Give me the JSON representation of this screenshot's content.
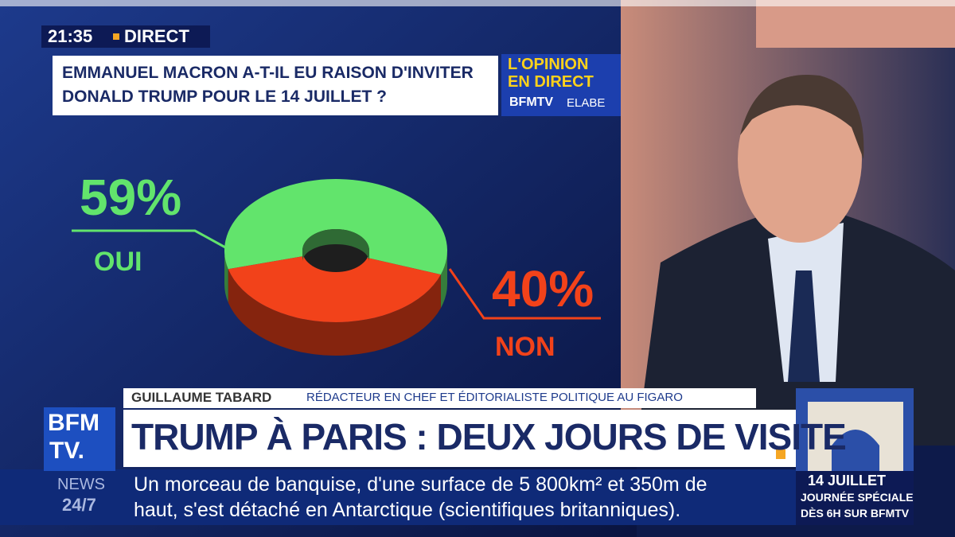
{
  "header": {
    "time": "21:35",
    "live": "DIRECT"
  },
  "chart_data": {
    "type": "pie",
    "title": "EMMANUEL MACRON A-T-IL EU RAISON D'INVITER DONALD TRUMP POUR LE 14 JUILLET ?",
    "categories": [
      "OUI",
      "NON"
    ],
    "values": [
      59,
      40
    ],
    "value_labels": [
      "59%",
      "40%"
    ],
    "colors": [
      "#62e46c",
      "#f2421a"
    ]
  },
  "badge": {
    "line1": "L'OPINION",
    "line2": "EN DIRECT",
    "line3": "BFMTV",
    "line4": "ELABE"
  },
  "guest": {
    "name": "GUILLAUME TABARD",
    "role": "RÉDACTEUR EN CHEF ET ÉDITORIALISTE POLITIQUE AU FIGARO"
  },
  "headline": "TRUMP À PARIS : DEUX JOURS DE VISITE",
  "channel": {
    "logo1": "BFM",
    "logo2": "TV.",
    "news": "NEWS",
    "hours": "24/7"
  },
  "ticker": [
    "Un morceau de banquise, d'une surface de 5 800km² et 350m de",
    "haut, s'est détaché en Antarctique (scientifiques britanniques)."
  ],
  "promo": {
    "date": "14 JUILLET",
    "line1": "JOURNÉE SPÉCIALE",
    "line2": "DÈS 6H SUR BFMTV"
  }
}
